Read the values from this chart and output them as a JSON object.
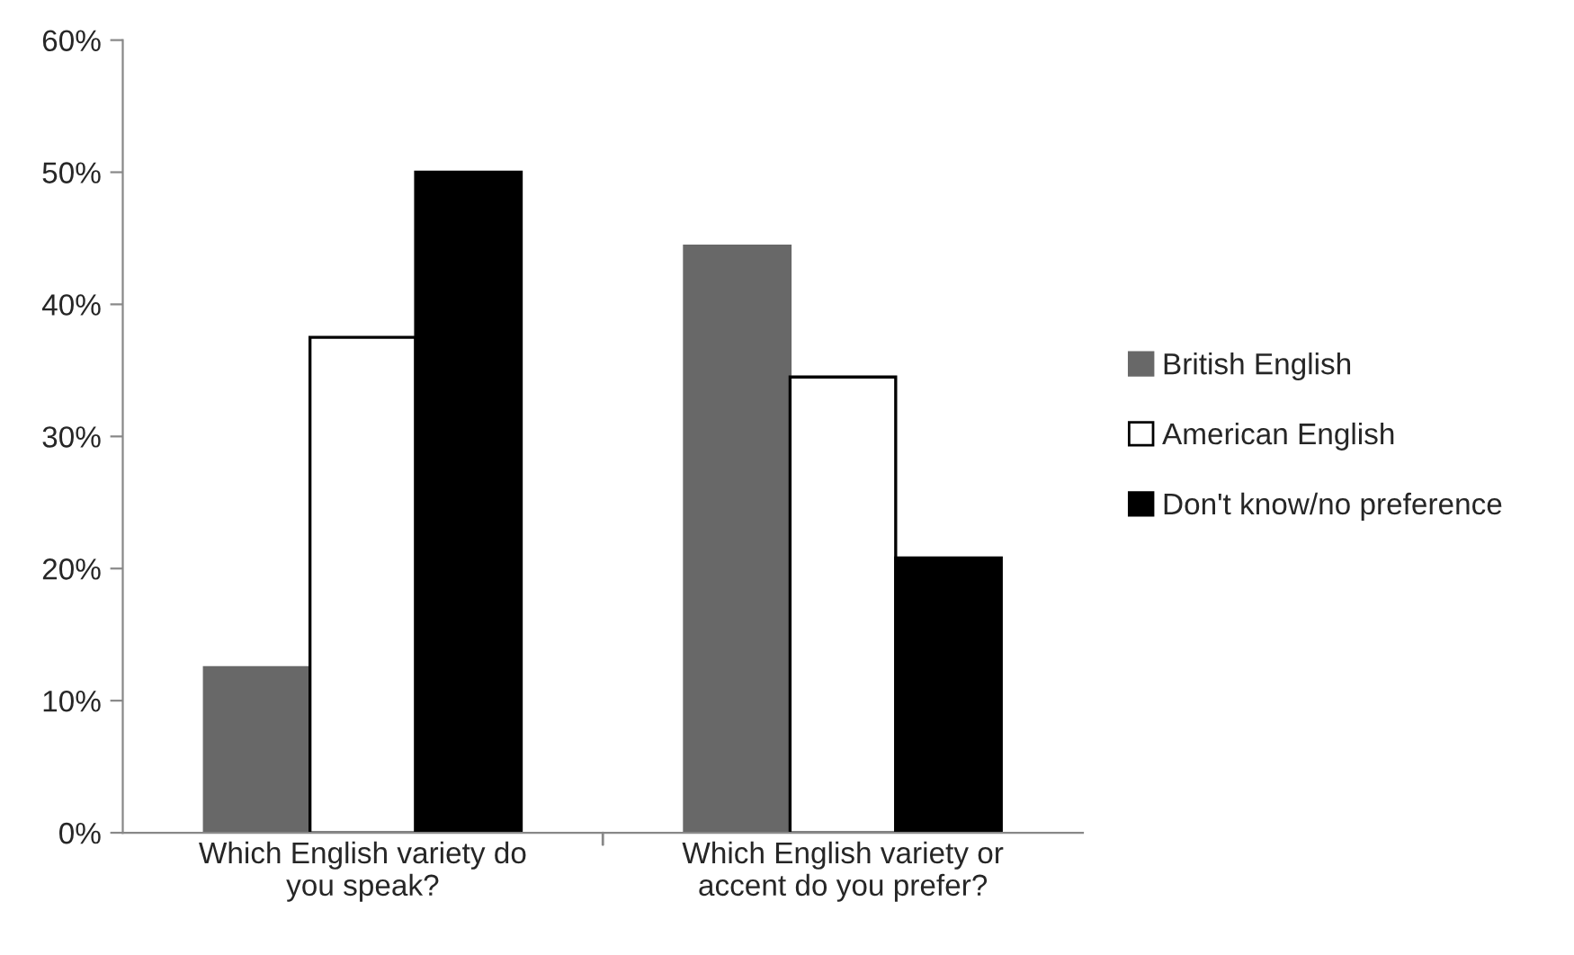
{
  "chart_data": {
    "type": "bar",
    "categories": [
      "Which English variety do\nyou speak?",
      "Which English variety or\naccent do you prefer?"
    ],
    "series": [
      {
        "name": "British English",
        "color": "#686868",
        "values": [
          12.5,
          44.4
        ]
      },
      {
        "name": "American English",
        "color": "#ffffff",
        "values": [
          37.5,
          34.5
        ]
      },
      {
        "name": "Don't know/no preference",
        "color": "#000000",
        "values": [
          50,
          20.8
        ]
      }
    ],
    "ylim": [
      0,
      60
    ],
    "yticks": [
      {
        "value": 0,
        "label": "0%"
      },
      {
        "value": 10,
        "label": "10%"
      },
      {
        "value": 20,
        "label": "20%"
      },
      {
        "value": 30,
        "label": "30%"
      },
      {
        "value": 40,
        "label": "40%"
      },
      {
        "value": 50,
        "label": "50%"
      },
      {
        "value": 60,
        "label": "60%"
      }
    ],
    "grid": false,
    "legend": "right"
  }
}
